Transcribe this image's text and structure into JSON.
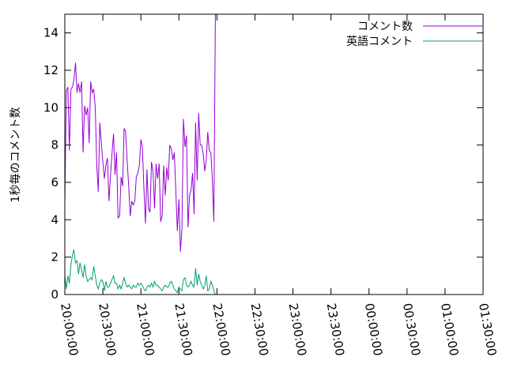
{
  "chart_data": {
    "type": "line",
    "title": "",
    "xlabel": "",
    "ylabel": "1秒毎のコメント数",
    "x_start": "20:00:00",
    "x_step_minutes": 1.2,
    "xlim": [
      "20:00:00",
      "01:30:00"
    ],
    "ylim": [
      0,
      15
    ],
    "x_ticks": [
      "20:00:00",
      "20:30:00",
      "21:00:00",
      "21:30:00",
      "22:00:00",
      "22:30:00",
      "23:00:00",
      "23:30:00",
      "00:00:00",
      "00:30:00",
      "01:00:00",
      "01:30:00"
    ],
    "y_ticks": [
      0,
      2,
      4,
      6,
      8,
      10,
      12,
      14
    ],
    "grid": false,
    "legend_position": "top-right",
    "series": [
      {
        "name": "コメント数",
        "color": "#9400d3",
        "values": [
          4.9,
          10.9,
          11.1,
          7.7,
          11.0,
          11.1,
          11.5,
          12.4,
          10.8,
          11.3,
          10.8,
          11.4,
          7.6,
          10.1,
          9.6,
          10.0,
          8.1,
          11.4,
          10.8,
          11.0,
          10.0,
          6.9,
          5.5,
          9.2,
          8.1,
          7.1,
          6.2,
          6.9,
          7.3,
          5.0,
          6.3,
          7.5,
          8.6,
          6.4,
          7.6,
          4.1,
          4.2,
          6.3,
          5.8,
          8.9,
          8.7,
          7.1,
          5.8,
          4.2,
          5.0,
          4.8,
          5.0,
          6.3,
          6.5,
          6.9,
          8.3,
          7.9,
          5.7,
          3.8,
          6.7,
          4.6,
          4.4,
          7.1,
          6.6,
          4.6,
          7.0,
          6.2,
          7.0,
          3.9,
          4.2,
          6.9,
          5.3,
          6.8,
          6.1,
          8.0,
          7.8,
          7.2,
          7.6,
          5.5,
          3.4,
          5.1,
          2.3,
          3.5,
          9.4,
          7.9,
          8.5,
          3.6,
          5.3,
          5.6,
          6.5,
          4.3,
          9.2,
          6.1,
          9.7,
          8.0,
          8.0,
          7.5,
          6.6,
          7.2,
          8.7,
          7.7,
          7.6,
          6.1,
          3.9,
          15.0
        ]
      },
      {
        "name": "英語コメント",
        "color": "#009e73",
        "values": [
          1.0,
          0.3,
          1.0,
          0.6,
          1.6,
          2.1,
          2.4,
          1.7,
          1.8,
          1.1,
          1.7,
          1.3,
          0.9,
          1.6,
          1.0,
          0.7,
          0.8,
          0.9,
          0.8,
          1.5,
          1.0,
          0.5,
          0.3,
          0.6,
          0.8,
          0.7,
          0.2,
          0.7,
          0.4,
          0.4,
          0.6,
          0.8,
          1.0,
          0.6,
          0.6,
          0.3,
          0.5,
          0.3,
          0.6,
          0.9,
          0.6,
          0.4,
          0.5,
          0.4,
          0.3,
          0.5,
          0.4,
          0.4,
          0.6,
          0.5,
          0.6,
          0.5,
          0.3,
          0.2,
          0.4,
          0.5,
          0.4,
          0.6,
          0.4,
          0.7,
          0.5,
          0.5,
          0.4,
          0.3,
          0.2,
          0.4,
          0.5,
          0.4,
          0.4,
          0.6,
          0.7,
          0.5,
          0.3,
          0.2,
          0.1,
          0.4,
          0.3,
          0.2,
          0.8,
          0.9,
          0.5,
          0.4,
          0.5,
          0.7,
          0.5,
          0.4,
          1.4,
          0.5,
          1.1,
          0.7,
          0.5,
          0.3,
          0.5,
          1.0,
          0.2,
          0.3,
          0.7,
          0.5,
          0.2,
          0.0
        ]
      }
    ]
  }
}
